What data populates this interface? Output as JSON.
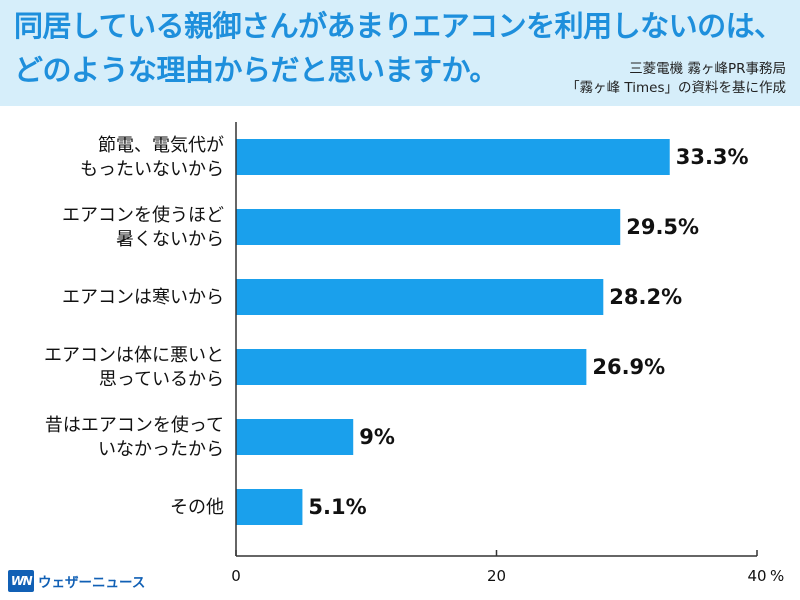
{
  "header": {
    "title_line1": "同居している親御さんがあまりエアコンを利用しないのは、",
    "title_line2": "どのような理由からだと思いますか。",
    "source_line1": "三菱電機 霧ヶ峰PR事務局",
    "source_line2": "「霧ヶ峰 Times」の資料を基に作成"
  },
  "colors": {
    "bar": "#1aa0ec",
    "header_bg": "#d6eefa",
    "title": "#1e8fdc",
    "axis": "#333333",
    "logo": "#1160b5"
  },
  "chart_data": {
    "type": "bar",
    "orientation": "horizontal",
    "categories": [
      [
        "節電、電気代が",
        "もったいないから"
      ],
      [
        "エアコンを使うほど",
        "暑くないから"
      ],
      [
        "エアコンは寒いから"
      ],
      [
        "エアコンは体に悪いと",
        "思っているから"
      ],
      [
        "昔はエアコンを使って",
        "いなかったから"
      ],
      [
        "その他"
      ]
    ],
    "values": [
      33.3,
      29.5,
      28.2,
      26.9,
      9,
      5.1
    ],
    "value_labels": [
      "33.3%",
      "29.5%",
      "28.2%",
      "26.9%",
      "9%",
      "5.1%"
    ],
    "xlim": [
      0,
      40
    ],
    "x_ticks": [
      0,
      20,
      40
    ],
    "x_tick_labels": [
      "0",
      "20",
      "40"
    ],
    "x_unit": "%",
    "grid": false,
    "legend": "none"
  },
  "footer": {
    "logo_mark": "WN",
    "logo_text": "ウェザーニュース"
  }
}
